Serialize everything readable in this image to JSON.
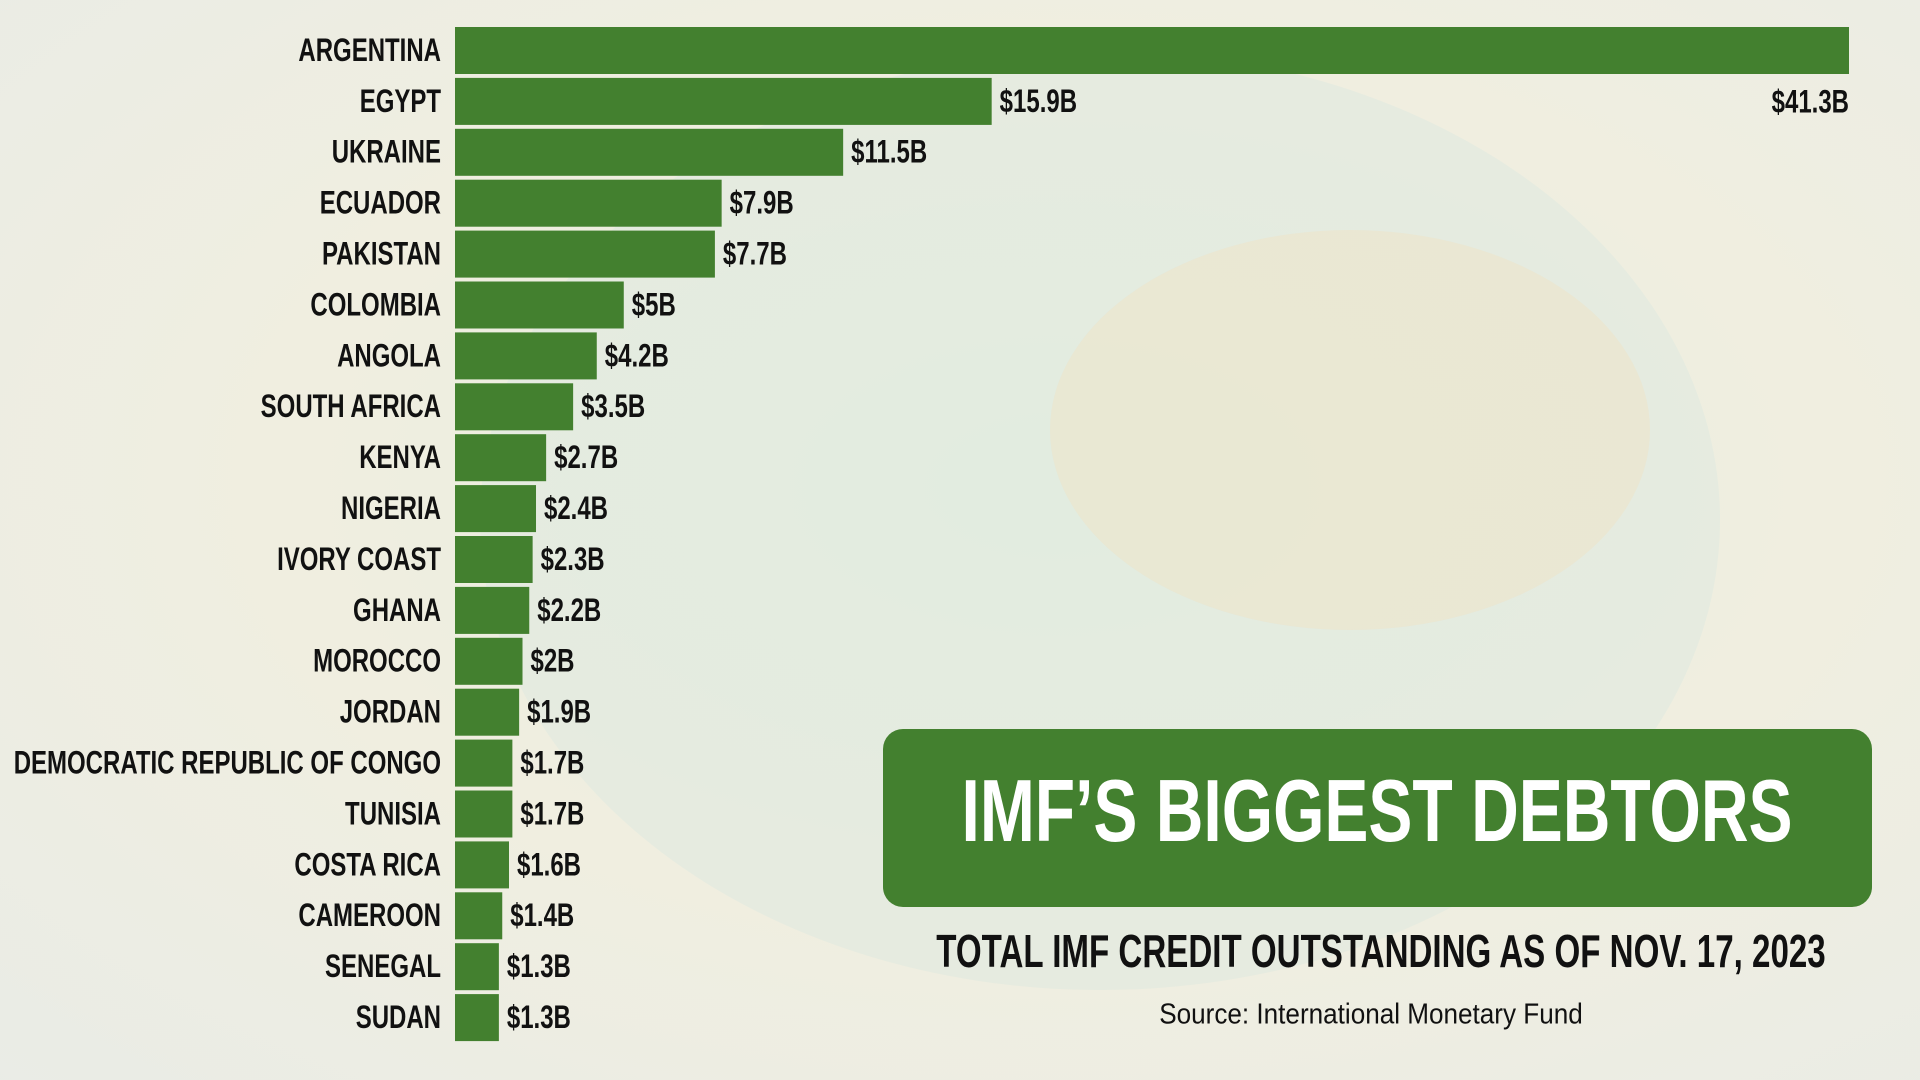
{
  "chart_data": {
    "type": "bar",
    "orientation": "horizontal",
    "title": "IMF’S BIGGEST DEBTORS",
    "subtitle": "TOTAL IMF CREDIT OUTSTANDING AS OF NOV. 17, 2023",
    "source": "Source: International Monetary Fund",
    "color": "#43802f",
    "categories": [
      "ARGENTINA",
      "EGYPT",
      "UKRAINE",
      "ECUADOR",
      "PAKISTAN",
      "COLOMBIA",
      "ANGOLA",
      "SOUTH AFRICA",
      "KENYA",
      "NIGERIA",
      "IVORY COAST",
      "GHANA",
      "MOROCCO",
      "JORDAN",
      "DEMOCRATIC REPUBLIC OF CONGO",
      "TUNISIA",
      "COSTA RICA",
      "CAMEROON",
      "SENEGAL",
      "SUDAN"
    ],
    "values": [
      41.3,
      15.9,
      11.5,
      7.9,
      7.7,
      5,
      4.2,
      3.5,
      2.7,
      2.4,
      2.3,
      2.2,
      2,
      1.9,
      1.7,
      1.7,
      1.6,
      1.4,
      1.3,
      1.3
    ],
    "value_labels": [
      "$41.3B",
      "$15.9B",
      "$11.5B",
      "$7.9B",
      "$7.7B",
      "$5B",
      "$4.2B",
      "$3.5B",
      "$2.7B",
      "$2.4B",
      "$2.3B",
      "$2.2B",
      "$2B",
      "$1.9B",
      "$1.7B",
      "$1.7B",
      "$1.6B",
      "$1.4B",
      "$1.3B",
      "$1.3B"
    ]
  }
}
